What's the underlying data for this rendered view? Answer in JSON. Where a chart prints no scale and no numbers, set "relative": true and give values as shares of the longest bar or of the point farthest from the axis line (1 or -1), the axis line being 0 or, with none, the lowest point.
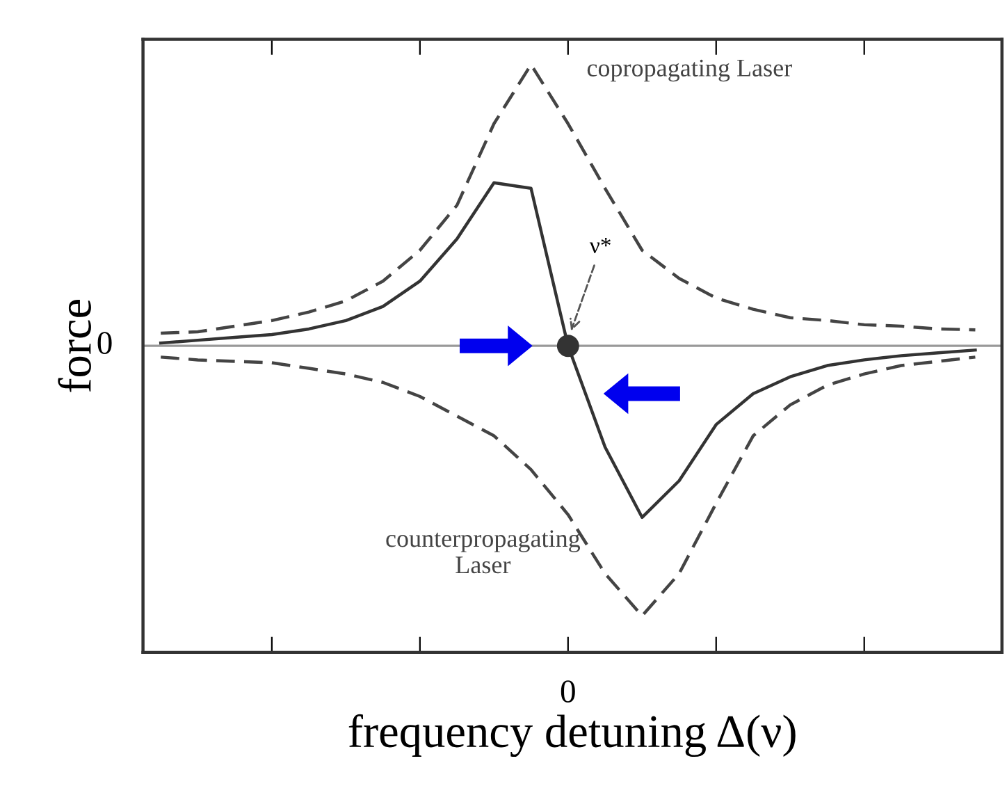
{
  "chart_data": {
    "type": "line",
    "relative": true,
    "xlabel": "frequency detuning Δ(ν)",
    "ylabel": "force",
    "categories": [
      null,
      null,
      null,
      null,
      null,
      null,
      null,
      null,
      null,
      null,
      null,
      null,
      null,
      null,
      null,
      null,
      null,
      null,
      null,
      null,
      null,
      null,
      null
    ],
    "series": [
      {
        "name": "copropagating Laser",
        "color": "#444444",
        "line_style": "dashed",
        "values": [
          0.045,
          0.05,
          0.07,
          0.09,
          0.12,
          0.16,
          0.23,
          0.34,
          0.5,
          0.79,
          1.0,
          0.79,
          0.56,
          0.34,
          0.24,
          0.17,
          0.13,
          0.1,
          0.09,
          0.075,
          0.07,
          0.06,
          0.057
        ]
      },
      {
        "name": "counterpropagating\nLaser",
        "color": "#444444",
        "line_style": "dashed",
        "values": [
          -0.04,
          -0.05,
          -0.055,
          -0.06,
          -0.08,
          -0.1,
          -0.13,
          -0.18,
          -0.25,
          -0.32,
          -0.44,
          -0.6,
          -0.81,
          -0.96,
          -0.81,
          -0.56,
          -0.32,
          -0.21,
          -0.14,
          -0.1,
          -0.07,
          -0.055,
          -0.04
        ]
      },
      {
        "color": "#333333",
        "line_style": "solid",
        "values": [
          0.01,
          0.02,
          0.03,
          0.04,
          0.06,
          0.09,
          0.14,
          0.23,
          0.38,
          0.58,
          0.56,
          0.0,
          -0.36,
          -0.61,
          -0.48,
          -0.28,
          -0.17,
          -0.11,
          -0.07,
          -0.05,
          -0.035,
          -0.025,
          -0.015
        ]
      }
    ],
    "annotations": [
      "0",
      "ν*",
      "0"
    ]
  }
}
